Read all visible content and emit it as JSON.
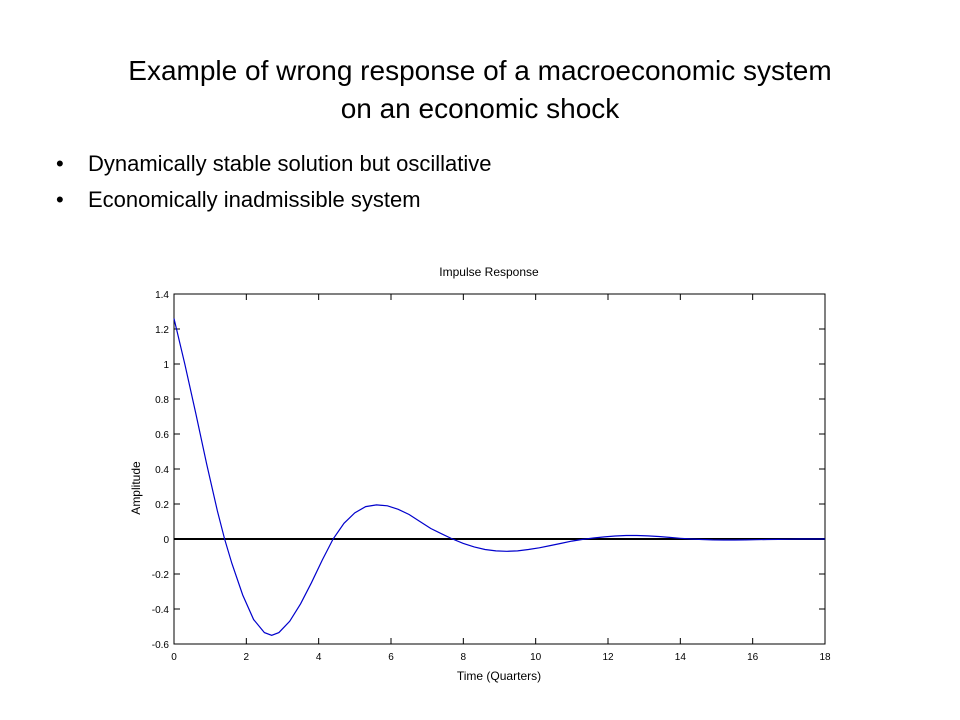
{
  "slide": {
    "title_lines": [
      "Example of wrong response of a macroeconomic system",
      "on an economic shock"
    ],
    "bullets": [
      "Dynamically stable solution but oscillative",
      "Economically inadmissible system"
    ],
    "bullet_glyph": "•"
  },
  "chart_data": {
    "type": "line",
    "title": "Impulse Response",
    "xlabel": "Time (Quarters)",
    "ylabel": "Amplitude",
    "xlim": [
      0,
      18
    ],
    "ylim": [
      -0.6,
      1.4
    ],
    "xticks": [
      0,
      2,
      4,
      6,
      8,
      10,
      12,
      14,
      16,
      18
    ],
    "xtick_labels": [
      "0",
      "2",
      "4",
      "6",
      "8",
      "10",
      "12",
      "14",
      "16",
      "18"
    ],
    "yticks": [
      -0.6,
      -0.4,
      -0.2,
      0,
      0.2,
      0.4,
      0.6,
      0.8,
      1,
      1.2,
      1.4
    ],
    "ytick_labels": [
      "-0.6",
      "-0.4",
      "-0.2",
      "0",
      "0.2",
      "0.4",
      "0.6",
      "0.8",
      "1",
      "1.2",
      "1.4"
    ],
    "grid": false,
    "series": [
      {
        "color": "#0000cc",
        "x": [
          0,
          0.3,
          0.6,
          0.9,
          1.2,
          1.4,
          1.6,
          1.9,
          2.2,
          2.5,
          2.7,
          2.9,
          3.2,
          3.5,
          3.8,
          4.1,
          4.4,
          4.7,
          5.0,
          5.3,
          5.6,
          5.9,
          6.2,
          6.5,
          6.8,
          7.1,
          7.4,
          7.7,
          8.0,
          8.3,
          8.6,
          8.9,
          9.2,
          9.5,
          9.8,
          10.1,
          10.4,
          10.7,
          11.0,
          11.3,
          11.6,
          11.9,
          12.2,
          12.5,
          12.8,
          13.1,
          13.4,
          13.7,
          14.0,
          14.3,
          14.6,
          14.9,
          15.2,
          15.5,
          15.8,
          16.1,
          16.4,
          16.7,
          17.0,
          17.3,
          17.6,
          18.0
        ],
        "y": [
          1.26,
          1.0,
          0.72,
          0.43,
          0.16,
          0.0,
          -0.14,
          -0.32,
          -0.46,
          -0.535,
          -0.55,
          -0.535,
          -0.47,
          -0.37,
          -0.25,
          -0.12,
          0.0,
          0.09,
          0.15,
          0.185,
          0.195,
          0.19,
          0.17,
          0.14,
          0.1,
          0.06,
          0.03,
          0.0,
          -0.025,
          -0.045,
          -0.06,
          -0.068,
          -0.07,
          -0.068,
          -0.06,
          -0.05,
          -0.038,
          -0.025,
          -0.012,
          -0.002,
          0.006,
          0.012,
          0.017,
          0.02,
          0.02,
          0.018,
          0.014,
          0.009,
          0.004,
          0.0,
          -0.003,
          -0.005,
          -0.006,
          -0.006,
          -0.005,
          -0.004,
          -0.003,
          -0.002,
          -0.001,
          0.0,
          0.0,
          0.0
        ]
      }
    ],
    "baseline": 0
  }
}
